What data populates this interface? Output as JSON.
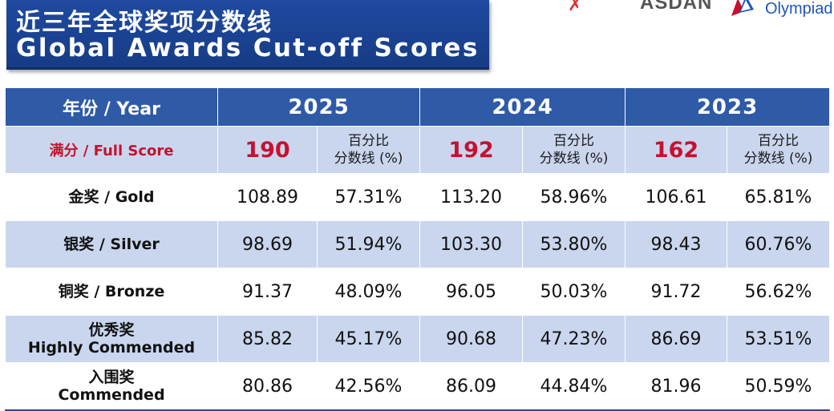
{
  "title": {
    "zh": "近三年全球奖项分数线",
    "en": "Global Awards Cut-off Scores"
  },
  "logos": {
    "asdan": "ASDAN",
    "olympiad": "Olympiad"
  },
  "table": {
    "header": {
      "label": "年份 / Year",
      "years": [
        "2025",
        "2024",
        "2023"
      ]
    },
    "full_score": {
      "label": "满分 / Full Score",
      "values": [
        "190",
        "192",
        "162"
      ],
      "pct_line1": "百分比",
      "pct_line2": "分数线 (%)"
    },
    "rows": [
      {
        "label_line1": "金奖 / Gold",
        "label_line2": "",
        "v2025": "108.89",
        "p2025": "57.31%",
        "v2024": "113.20",
        "p2024": "58.96%",
        "v2023": "106.61",
        "p2023": "65.81%"
      },
      {
        "label_line1": "银奖 / Silver",
        "label_line2": "",
        "v2025": "98.69",
        "p2025": "51.94%",
        "v2024": "103.30",
        "p2024": "53.80%",
        "v2023": "98.43",
        "p2023": "60.76%"
      },
      {
        "label_line1": "铜奖 / Bronze",
        "label_line2": "",
        "v2025": "91.37",
        "p2025": "48.09%",
        "v2024": "96.05",
        "p2024": "50.03%",
        "v2023": "91.72",
        "p2023": "56.62%"
      },
      {
        "label_line1": "优秀奖",
        "label_line2": "Highly Commended",
        "v2025": "85.82",
        "p2025": "45.17%",
        "v2024": "90.68",
        "p2024": "47.23%",
        "v2023": "86.69",
        "p2023": "53.51%"
      },
      {
        "label_line1": "入围奖",
        "label_line2": "Commended",
        "v2025": "80.86",
        "p2025": "42.56%",
        "v2024": "86.09",
        "p2024": "44.84%",
        "v2023": "81.96",
        "p2023": "50.59%"
      }
    ]
  },
  "colors": {
    "header_blue": "#2e5aa8",
    "title_blue": "#1f4aa0",
    "band_light": "#c9d6ee",
    "accent_red": "#c8102e"
  }
}
